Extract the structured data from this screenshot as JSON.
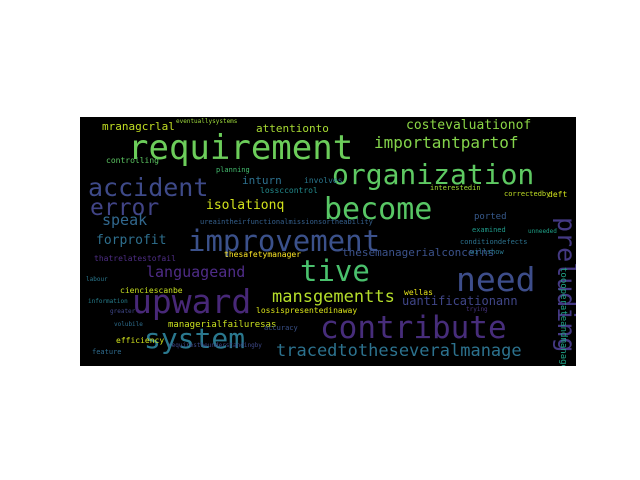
{
  "wordcloud": {
    "background": "#000000",
    "words": [
      {
        "text": "requirement",
        "color": "#6ccd5a"
      },
      {
        "text": "improvement",
        "color": "#3b518b"
      },
      {
        "text": "organization",
        "color": "#5ec962"
      },
      {
        "text": "become",
        "color": "#58c765"
      },
      {
        "text": "accident",
        "color": "#3e4a89"
      },
      {
        "text": "error",
        "color": "#414487"
      },
      {
        "text": "need",
        "color": "#3d4d8a"
      },
      {
        "text": "upward",
        "color": "#482878"
      },
      {
        "text": "contribute",
        "color": "#472d7b"
      },
      {
        "text": "system",
        "color": "#2a788e"
      },
      {
        "text": "preluding",
        "color": "#443983"
      },
      {
        "text": "tive",
        "color": "#4ac16d"
      },
      {
        "text": "mansgementts",
        "color": "#b5de2b"
      },
      {
        "text": "tracedtotheseveralmanage",
        "color": "#2c728e"
      },
      {
        "text": "importantpartof",
        "color": "#84d44b"
      },
      {
        "text": "costevaluationof",
        "color": "#8bd646"
      },
      {
        "text": "mranagcrlal",
        "color": "#c2df23"
      },
      {
        "text": "attentionto",
        "color": "#a8db34"
      },
      {
        "text": "isolationq",
        "color": "#d2e21b"
      },
      {
        "text": "speak",
        "color": "#31688e"
      },
      {
        "text": "forprofit",
        "color": "#2e6f8e"
      },
      {
        "text": "languageand",
        "color": "#4f2c88"
      },
      {
        "text": "thesemanagerialconcerns",
        "color": "#3b528b"
      },
      {
        "text": "uantificationann",
        "color": "#404688"
      },
      {
        "text": "inturn",
        "color": "#2d708e"
      },
      {
        "text": "toooperateandmanage",
        "color": "#20a386"
      },
      {
        "text": "thesafetymanager",
        "color": "#fde725"
      },
      {
        "text": "lossispresentedinaway",
        "color": "#d8e219"
      },
      {
        "text": "managerialfailuresas",
        "color": "#cae11f"
      },
      {
        "text": "thatrelatestofail",
        "color": "#4e2d85"
      },
      {
        "text": "ureaintheirfunctionalmissionsortheability",
        "color": "#35608d"
      },
      {
        "text": "lossccontrol",
        "color": "#228b8d"
      },
      {
        "text": "involves",
        "color": "#2a778e"
      },
      {
        "text": "correctedby",
        "color": "#c0df25"
      },
      {
        "text": "deft",
        "color": "#d2e21b"
      },
      {
        "text": "interestedin",
        "color": "#a2da37"
      },
      {
        "text": "ported",
        "color": "#375a8c"
      },
      {
        "text": "conditiondefects",
        "color": "#2c728e"
      },
      {
        "text": "examined",
        "color": "#1f9a8a"
      },
      {
        "text": "willshow",
        "color": "#2a788e"
      },
      {
        "text": "wellas",
        "color": "#e5e419"
      },
      {
        "text": "accuracy",
        "color": "#3b528b"
      },
      {
        "text": "controlling",
        "color": "#5dc863"
      },
      {
        "text": "efficiency",
        "color": "#d0e11c"
      },
      {
        "text": "cienciescanbe",
        "color": "#c8e020"
      },
      {
        "text": "planning",
        "color": "#44bf70"
      },
      {
        "text": "volubile",
        "color": "#2e6e8e"
      },
      {
        "text": "feature",
        "color": "#2f6c8e"
      },
      {
        "text": "information",
        "color": "#277f8e"
      },
      {
        "text": "requirestheunderstandingby",
        "color": "#3e4989"
      },
      {
        "text": "eventuallysystems",
        "color": "#9dd93b"
      },
      {
        "text": "greater",
        "color": "#3f4788"
      },
      {
        "text": "labour",
        "color": "#2a788e"
      },
      {
        "text": "unneeded",
        "color": "#1fa187"
      },
      {
        "text": "trying",
        "color": "#46337f"
      }
    ]
  }
}
